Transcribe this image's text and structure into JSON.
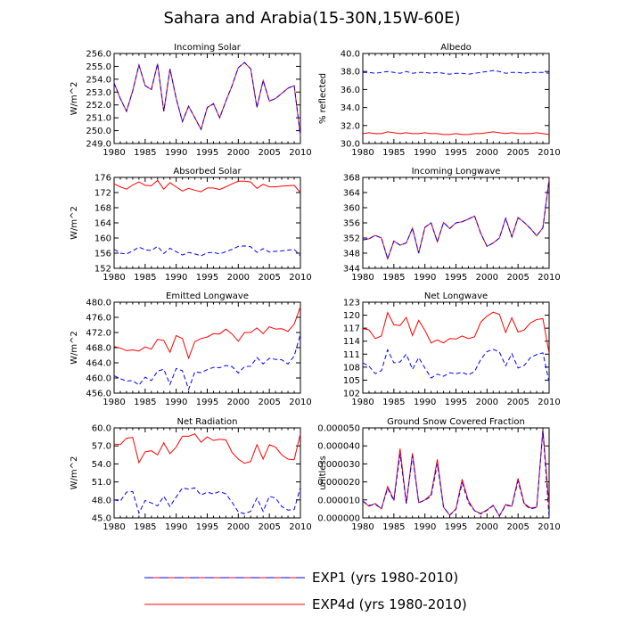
{
  "page": {
    "title": "Sahara and Arabia(15-30N,15W-60E)"
  },
  "legend": [
    {
      "label": "EXP1 (yrs 1980-2010)",
      "color": "#0000ff",
      "dash": "dashed",
      "swatch_color": "#ff0000"
    },
    {
      "label": "EXP4d (yrs 1980-2010)",
      "color": "#ff0000",
      "dash": "solid"
    }
  ],
  "chart_data": [
    {
      "type": "line",
      "title": "Incoming Solar",
      "xlabel": "",
      "ylabel": "W/m^2",
      "xlim": [
        1980,
        2010
      ],
      "ylim": [
        249.0,
        256.0
      ],
      "yticks": [
        249.0,
        250.0,
        251.0,
        252.0,
        253.0,
        254.0,
        255.0,
        256.0
      ],
      "ytick_decimals": 1,
      "x": [
        1980,
        1981,
        1982,
        1983,
        1984,
        1985,
        1986,
        1987,
        1988,
        1989,
        1990,
        1991,
        1992,
        1993,
        1994,
        1995,
        1996,
        1997,
        1998,
        1999,
        2000,
        2001,
        2002,
        2003,
        2004,
        2005,
        2006,
        2007,
        2008,
        2009,
        2010
      ],
      "series": [
        {
          "name": "EXP4d",
          "color": "#ff0000",
          "dash": "solid",
          "values": [
            253.7,
            252.5,
            251.5,
            253.1,
            255.1,
            253.5,
            253.2,
            255.2,
            251.5,
            254.8,
            252.5,
            250.7,
            251.9,
            251.0,
            250.1,
            251.8,
            252.1,
            251.0,
            252.3,
            253.5,
            254.9,
            255.3,
            254.8,
            251.8,
            253.9,
            252.3,
            252.5,
            252.9,
            253.3,
            253.5,
            249.6
          ]
        },
        {
          "name": "EXP1",
          "color": "#0000ff",
          "dash": "dashed",
          "values": [
            253.7,
            252.5,
            251.5,
            253.1,
            255.1,
            253.5,
            253.2,
            255.2,
            251.5,
            254.8,
            252.5,
            250.7,
            251.9,
            251.0,
            250.1,
            251.8,
            252.1,
            251.0,
            252.3,
            253.5,
            254.9,
            255.3,
            254.8,
            251.8,
            253.9,
            252.3,
            252.5,
            252.9,
            253.3,
            253.5,
            249.6
          ]
        }
      ]
    },
    {
      "type": "line",
      "title": "Albedo",
      "xlabel": "",
      "ylabel": "% reflected",
      "xlim": [
        1980,
        2010
      ],
      "ylim": [
        30.0,
        40.0
      ],
      "yticks": [
        30.0,
        32.0,
        34.0,
        36.0,
        38.0,
        40.0
      ],
      "ytick_decimals": 1,
      "x": [
        1980,
        1981,
        1982,
        1983,
        1984,
        1985,
        1986,
        1987,
        1988,
        1989,
        1990,
        1991,
        1992,
        1993,
        1994,
        1995,
        1996,
        1997,
        1998,
        1999,
        2000,
        2001,
        2002,
        2003,
        2004,
        2005,
        2006,
        2007,
        2008,
        2009,
        2010
      ],
      "series": [
        {
          "name": "EXP4d",
          "color": "#ff0000",
          "dash": "solid",
          "values": [
            31.1,
            31.2,
            31.1,
            31.1,
            31.3,
            31.2,
            31.1,
            31.2,
            31.1,
            31.1,
            31.2,
            31.1,
            31.1,
            31.0,
            31.0,
            31.1,
            31.0,
            31.0,
            31.1,
            31.1,
            31.2,
            31.3,
            31.2,
            31.1,
            31.2,
            31.1,
            31.1,
            31.1,
            31.2,
            31.1,
            31.0
          ]
        },
        {
          "name": "EXP1",
          "color": "#0000ff",
          "dash": "dashed",
          "values": [
            37.9,
            37.9,
            37.8,
            37.9,
            38.0,
            37.9,
            37.8,
            38.0,
            37.8,
            37.9,
            37.9,
            37.8,
            37.9,
            37.8,
            37.7,
            37.8,
            37.8,
            37.7,
            37.8,
            37.9,
            38.0,
            38.1,
            38.0,
            37.8,
            37.9,
            37.9,
            37.8,
            37.9,
            37.9,
            37.9,
            37.8
          ]
        }
      ]
    },
    {
      "type": "line",
      "title": "Absorbed Solar",
      "xlabel": "",
      "ylabel": "W/m^2",
      "xlim": [
        1980,
        2010
      ],
      "ylim": [
        152,
        176
      ],
      "yticks": [
        152,
        156,
        160,
        164,
        168,
        172,
        176
      ],
      "ytick_decimals": 0,
      "x": [
        1980,
        1981,
        1982,
        1983,
        1984,
        1985,
        1986,
        1987,
        1988,
        1989,
        1990,
        1991,
        1992,
        1993,
        1994,
        1995,
        1996,
        1997,
        1998,
        1999,
        2000,
        2001,
        2002,
        2003,
        2004,
        2005,
        2006,
        2007,
        2008,
        2009,
        2010
      ],
      "series": [
        {
          "name": "EXP4d",
          "color": "#ff0000",
          "dash": "solid",
          "values": [
            174.3,
            173.5,
            172.9,
            174.0,
            174.8,
            173.9,
            173.8,
            175.2,
            172.9,
            174.6,
            173.5,
            172.4,
            173.1,
            172.6,
            172.2,
            173.2,
            173.2,
            172.8,
            173.5,
            174.3,
            175.0,
            175.0,
            174.8,
            173.1,
            174.2,
            173.5,
            173.5,
            173.7,
            173.8,
            173.9,
            172.0
          ]
        },
        {
          "name": "EXP1",
          "color": "#0000ff",
          "dash": "dashed",
          "values": [
            157.0,
            156.0,
            155.8,
            156.6,
            157.6,
            156.9,
            156.7,
            157.8,
            155.9,
            157.3,
            156.4,
            155.5,
            156.2,
            155.8,
            155.3,
            156.1,
            156.2,
            155.8,
            156.4,
            157.0,
            157.8,
            157.9,
            157.7,
            156.2,
            157.2,
            156.3,
            156.5,
            156.6,
            156.8,
            157.0,
            155.3
          ]
        }
      ]
    },
    {
      "type": "line",
      "title": "Incoming Longwave",
      "xlabel": "",
      "ylabel": "",
      "xlim": [
        1980,
        2010
      ],
      "ylim": [
        344,
        368
      ],
      "yticks": [
        344,
        348,
        352,
        356,
        360,
        364,
        368
      ],
      "ytick_decimals": 0,
      "x": [
        1980,
        1981,
        1982,
        1983,
        1984,
        1985,
        1986,
        1987,
        1988,
        1989,
        1990,
        1991,
        1992,
        1993,
        1994,
        1995,
        1996,
        1997,
        1998,
        1999,
        2000,
        2001,
        2002,
        2003,
        2004,
        2005,
        2006,
        2007,
        2008,
        2009,
        2010
      ],
      "series": [
        {
          "name": "EXP4d",
          "color": "#ff0000",
          "dash": "solid",
          "values": [
            351.5,
            351.8,
            352.7,
            352.0,
            346.5,
            351.2,
            350.1,
            350.7,
            354.6,
            348.0,
            354.8,
            356.0,
            351.0,
            356.1,
            354.5,
            356.0,
            356.3,
            357.0,
            357.8,
            353.2,
            349.8,
            350.7,
            352.0,
            357.2,
            352.3,
            357.4,
            356.1,
            354.5,
            352.6,
            354.7,
            367.5
          ]
        },
        {
          "name": "EXP1",
          "color": "#0000ff",
          "dash": "dashed",
          "values": [
            351.5,
            351.8,
            352.7,
            352.0,
            346.5,
            351.2,
            350.1,
            350.7,
            354.6,
            348.0,
            354.8,
            356.0,
            351.0,
            356.1,
            354.5,
            356.0,
            356.3,
            357.0,
            357.8,
            353.2,
            349.8,
            350.7,
            352.0,
            357.2,
            352.3,
            357.4,
            356.1,
            354.5,
            352.6,
            354.7,
            367.5
          ]
        }
      ]
    },
    {
      "type": "line",
      "title": "Emitted Longwave",
      "xlabel": "",
      "ylabel": "W/m^2",
      "xlim": [
        1980,
        2010
      ],
      "ylim": [
        456.0,
        480.0
      ],
      "yticks": [
        456.0,
        460.0,
        464.0,
        468.0,
        472.0,
        476.0,
        480.0
      ],
      "ytick_decimals": 1,
      "x": [
        1980,
        1981,
        1982,
        1983,
        1984,
        1985,
        1986,
        1987,
        1988,
        1989,
        1990,
        1991,
        1992,
        1993,
        1994,
        1995,
        1996,
        1997,
        1998,
        1999,
        2000,
        2001,
        2002,
        2003,
        2004,
        2005,
        2006,
        2007,
        2008,
        2009,
        2010
      ],
      "series": [
        {
          "name": "EXP4d",
          "color": "#ff0000",
          "dash": "solid",
          "values": [
            468.3,
            467.9,
            467.2,
            467.4,
            467.1,
            468.2,
            467.6,
            470.2,
            469.9,
            466.8,
            471.2,
            470.4,
            465.2,
            469.6,
            470.4,
            470.8,
            471.7,
            471.6,
            472.9,
            471.6,
            469.7,
            472.0,
            472.0,
            473.2,
            471.7,
            473.5,
            472.9,
            473.0,
            472.3,
            474.2,
            478.8
          ]
        },
        {
          "name": "EXP1",
          "color": "#0000ff",
          "dash": "dashed",
          "values": [
            460.6,
            459.8,
            459.2,
            459.3,
            458.1,
            460.2,
            459.3,
            461.8,
            462.3,
            458.3,
            462.5,
            461.9,
            457.0,
            461.6,
            461.4,
            462.2,
            462.8,
            462.7,
            463.3,
            463.0,
            461.3,
            463.0,
            463.1,
            465.4,
            463.7,
            465.2,
            464.9,
            464.8,
            463.7,
            465.8,
            471.5
          ]
        }
      ]
    },
    {
      "type": "line",
      "title": "Net Longwave",
      "xlabel": "",
      "ylabel": "",
      "xlim": [
        1980,
        2010
      ],
      "ylim": [
        102,
        123
      ],
      "yticks": [
        102,
        105,
        108,
        111,
        114,
        117,
        120,
        123
      ],
      "ytick_decimals": 0,
      "x": [
        1980,
        1981,
        1982,
        1983,
        1984,
        1985,
        1986,
        1987,
        1988,
        1989,
        1990,
        1991,
        1992,
        1993,
        1994,
        1995,
        1996,
        1997,
        1998,
        1999,
        2000,
        2001,
        2002,
        2003,
        2004,
        2005,
        2006,
        2007,
        2008,
        2009,
        2010
      ],
      "series": [
        {
          "name": "EXP4d",
          "color": "#ff0000",
          "dash": "solid",
          "values": [
            116.9,
            116.6,
            114.6,
            115.2,
            120.6,
            117.8,
            117.6,
            119.5,
            115.3,
            118.8,
            116.5,
            113.6,
            114.3,
            113.6,
            114.6,
            114.5,
            115.2,
            114.6,
            115.0,
            118.4,
            119.8,
            120.7,
            120.2,
            116.0,
            119.4,
            116.1,
            116.6,
            118.2,
            119.0,
            119.2,
            111.2
          ]
        },
        {
          "name": "EXP1",
          "color": "#0000ff",
          "dash": "dashed",
          "values": [
            109.0,
            108.2,
            106.5,
            107.2,
            112.0,
            109.0,
            109.2,
            111.0,
            107.5,
            110.2,
            107.8,
            105.5,
            106.4,
            105.9,
            106.7,
            106.5,
            106.8,
            106.2,
            107.0,
            109.8,
            111.6,
            112.1,
            111.5,
            108.3,
            111.1,
            107.8,
            108.4,
            110.2,
            110.9,
            111.3,
            104.6
          ]
        }
      ]
    },
    {
      "type": "line",
      "title": "Net Radiation",
      "xlabel": "",
      "ylabel": "W/m^2",
      "xlim": [
        1980,
        2010
      ],
      "ylim": [
        45.0,
        60.0
      ],
      "yticks": [
        45.0,
        48.0,
        51.0,
        54.0,
        57.0,
        60.0
      ],
      "ytick_decimals": 1,
      "x": [
        1980,
        1981,
        1982,
        1983,
        1984,
        1985,
        1986,
        1987,
        1988,
        1989,
        1990,
        1991,
        1992,
        1993,
        1994,
        1995,
        1996,
        1997,
        1998,
        1999,
        2000,
        2001,
        2002,
        2003,
        2004,
        2005,
        2006,
        2007,
        2008,
        2009,
        2010
      ],
      "series": [
        {
          "name": "EXP4d",
          "color": "#ff0000",
          "dash": "solid",
          "values": [
            57.3,
            57.2,
            58.3,
            58.4,
            54.2,
            56.0,
            56.2,
            55.5,
            57.5,
            55.7,
            56.8,
            58.6,
            58.6,
            59.0,
            57.6,
            58.5,
            57.9,
            58.1,
            58.0,
            55.9,
            54.8,
            54.1,
            54.4,
            57.2,
            54.8,
            57.2,
            56.8,
            55.5,
            54.8,
            54.7,
            59.0
          ]
        },
        {
          "name": "EXP1",
          "color": "#0000ff",
          "dash": "dashed",
          "values": [
            48.0,
            47.8,
            49.3,
            49.4,
            45.8,
            47.9,
            47.5,
            47.0,
            48.6,
            46.9,
            48.5,
            50.0,
            49.8,
            50.0,
            48.8,
            49.3,
            49.0,
            49.4,
            49.0,
            47.6,
            46.0,
            45.7,
            46.1,
            48.3,
            46.1,
            48.6,
            48.3,
            46.9,
            46.3,
            46.4,
            50.1
          ]
        }
      ]
    },
    {
      "type": "line",
      "title": "Ground Snow Covered Fraction",
      "xlabel": "",
      "ylabel": "unitless",
      "xlim": [
        1980,
        2010
      ],
      "ylim": [
        0.0,
        5e-05
      ],
      "yticks": [
        0.0,
        1e-05,
        2e-05,
        3e-05,
        4e-05,
        5e-05
      ],
      "ytick_decimals": 6,
      "x": [
        1980,
        1981,
        1982,
        1983,
        1984,
        1985,
        1986,
        1987,
        1988,
        1989,
        1990,
        1991,
        1992,
        1993,
        1994,
        1995,
        1996,
        1997,
        1998,
        1999,
        2000,
        2001,
        2002,
        2003,
        2004,
        2005,
        2006,
        2007,
        2008,
        2009,
        2010
      ],
      "series": [
        {
          "name": "EXP4d",
          "color": "#ff0000",
          "dash": "solid",
          "values": [
            9.3e-06,
            6.5e-06,
            8e-06,
            5e-06,
            1.75e-05,
            1e-05,
            3.85e-05,
            8e-06,
            3.6e-05,
            8.5e-06,
            1e-05,
            1.3e-05,
            3.25e-05,
            6e-06,
            1.5e-06,
            5e-06,
            2.15e-05,
            9.5e-06,
            4e-06,
            2.5e-06,
            4.5e-06,
            7e-06,
            1e-06,
            7.5e-06,
            6.5e-06,
            2.2e-05,
            8e-06,
            5.5e-06,
            6e-06,
            4.9e-05,
            6.5e-06
          ]
        },
        {
          "name": "EXP1",
          "color": "#0000ff",
          "dash": "dashed",
          "values": [
            9.3e-06,
            7e-06,
            7.5e-06,
            5.2e-06,
            1.65e-05,
            9.5e-06,
            3.55e-05,
            8e-06,
            3.45e-05,
            8.5e-06,
            9.8e-06,
            1.2e-05,
            3e-05,
            6e-06,
            1.5e-06,
            4.8e-06,
            1.95e-05,
            8.5e-06,
            4e-06,
            2.2e-06,
            4.2e-06,
            6.8e-06,
            1.2e-06,
            7e-06,
            6.5e-06,
            2.05e-05,
            7.5e-06,
            5e-06,
            5.8e-06,
            4.85e-05,
            4e-07
          ]
        }
      ]
    }
  ]
}
